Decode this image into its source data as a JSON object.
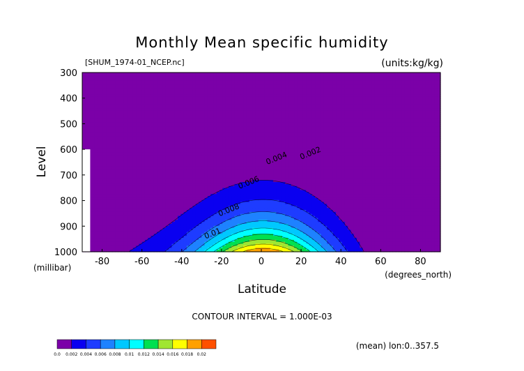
{
  "chart_data": {
    "type": "contour",
    "title": "Monthly Mean specific humidity",
    "file_label": "[SHUM_1974-01_NCEP.nc]",
    "units_label": "(units:kg/kg)",
    "ylabel": "Level",
    "yunit_label": "(millibar)",
    "xlabel": "Latitude",
    "xunit_label": "(degrees_north)",
    "contour_interval": "CONTOUR INTERVAL = 1.000E-03",
    "footer_note": "(mean) lon:0..357.5",
    "xlim": [
      -90,
      90
    ],
    "ylim": [
      1000,
      300
    ],
    "x_ticks": [
      "-80",
      "-60",
      "-40",
      "-20",
      "0",
      "20",
      "40",
      "60",
      "80"
    ],
    "x_tick_values": [
      -80,
      -60,
      -40,
      -20,
      0,
      20,
      40,
      60,
      80
    ],
    "y_ticks": [
      "300",
      "400",
      "500",
      "600",
      "700",
      "800",
      "900",
      "1000"
    ],
    "y_tick_values": [
      300,
      400,
      500,
      600,
      700,
      800,
      900,
      1000
    ],
    "contour_labels": [
      {
        "text": "0.002",
        "lat": 20,
        "lev": 640
      },
      {
        "text": "0.004",
        "lat": 3,
        "lev": 660
      },
      {
        "text": "0.006",
        "lat": -11,
        "lev": 755
      },
      {
        "text": "0.008",
        "lat": -21,
        "lev": 862
      },
      {
        "text": "0.01",
        "lat": -28,
        "lev": 950
      }
    ],
    "levels": [
      0.0,
      0.002,
      0.004,
      0.006,
      0.008,
      0.01,
      0.012,
      0.014,
      0.016,
      0.018,
      0.02
    ],
    "level_colors": [
      "#7b00a8",
      "#0a00f0",
      "#1e3cff",
      "#1e82ff",
      "#00c8ff",
      "#00ffff",
      "#00e050",
      "#a0e632",
      "#ffff00",
      "#ffa000",
      "#ff5000",
      "#ff0000"
    ],
    "colorbar_labels": [
      "0.0",
      "0.002",
      "0.004",
      "0.006",
      "0.008",
      "0.01",
      "0.012",
      "0.014",
      "0.016",
      "0.018",
      "0.02"
    ],
    "missing_region": {
      "lat_max": -86,
      "note": "no data near the south pole at low levels"
    },
    "grid": false
  }
}
